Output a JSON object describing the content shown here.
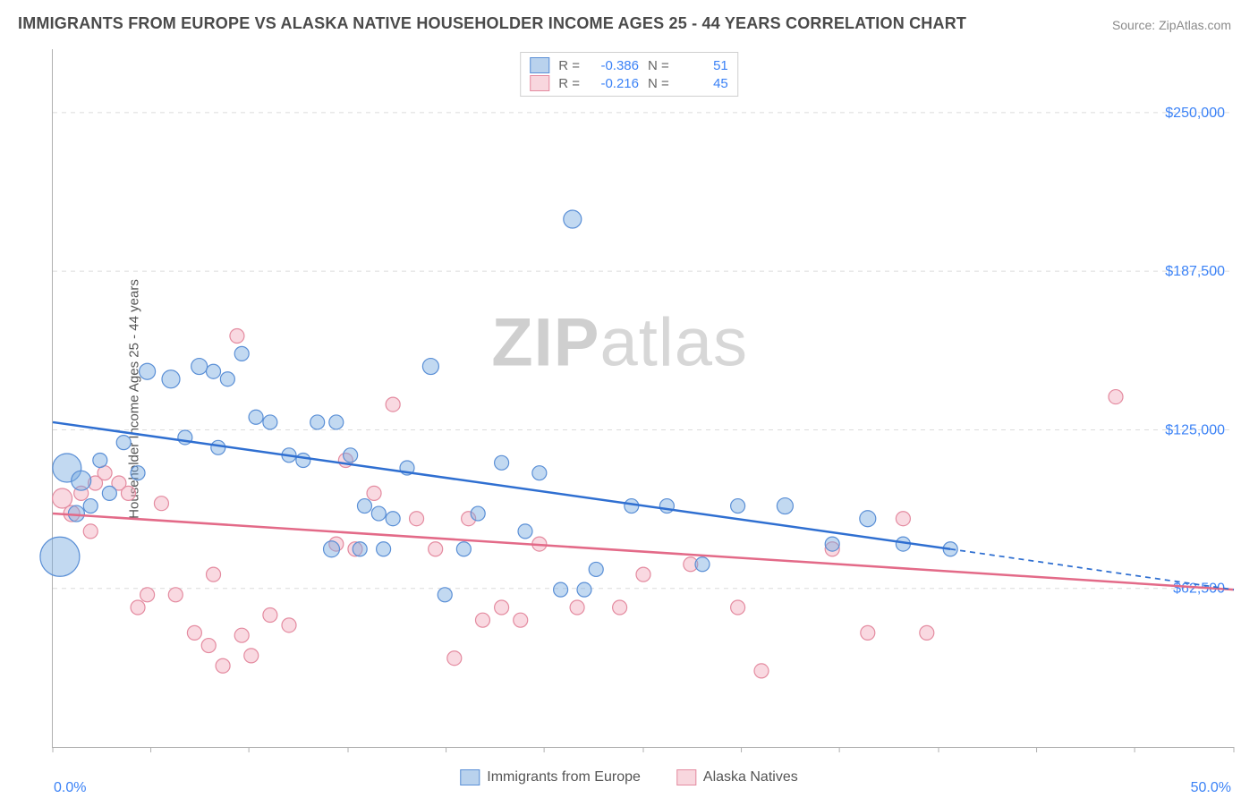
{
  "title": "IMMIGRANTS FROM EUROPE VS ALASKA NATIVE HOUSEHOLDER INCOME AGES 25 - 44 YEARS CORRELATION CHART",
  "source": "Source: ZipAtlas.com",
  "y_axis_label": "Householder Income Ages 25 - 44 years",
  "watermark": {
    "part1": "ZIP",
    "part2": "atlas"
  },
  "chart": {
    "type": "scatter",
    "xlim": [
      0,
      50
    ],
    "ylim": [
      0,
      275000
    ],
    "x_tick_positions_pct": [
      0,
      8.3,
      16.6,
      25,
      33.3,
      41.6,
      50,
      58.3,
      66.6,
      75,
      83.3,
      91.6,
      100
    ],
    "x_tick_labels": {
      "min": "0.0%",
      "max": "50.0%"
    },
    "y_gridlines": [
      62500,
      125000,
      187500,
      250000
    ],
    "y_tick_labels": [
      "$62,500",
      "$125,000",
      "$187,500",
      "$250,000"
    ],
    "grid_color": "#dcdcdc",
    "axis_color": "#b0b0b0",
    "background_color": "#ffffff",
    "label_fontsize": 15,
    "tick_fontsize": 16,
    "tick_label_color": "#3b82f6",
    "title_fontsize": 18,
    "series": {
      "blue": {
        "label": "Immigrants from Europe",
        "fill": "rgba(120,170,225,0.45)",
        "stroke": "#5a8fd6",
        "correlation": {
          "R": "-0.386",
          "N": "51"
        },
        "trend": {
          "x1": 0,
          "y1": 128000,
          "x2": 38,
          "y2": 78000,
          "x2_dash": 50,
          "y2_dash": 62000,
          "color": "#2f6fd1",
          "width": 2.5
        },
        "points": [
          {
            "x": 0.3,
            "y": 75000,
            "r": 22
          },
          {
            "x": 0.6,
            "y": 110000,
            "r": 16
          },
          {
            "x": 1.2,
            "y": 105000,
            "r": 11
          },
          {
            "x": 1.0,
            "y": 92000,
            "r": 9
          },
          {
            "x": 1.6,
            "y": 95000,
            "r": 8
          },
          {
            "x": 2.0,
            "y": 113000,
            "r": 8
          },
          {
            "x": 2.4,
            "y": 100000,
            "r": 8
          },
          {
            "x": 3.0,
            "y": 120000,
            "r": 8
          },
          {
            "x": 3.6,
            "y": 108000,
            "r": 8
          },
          {
            "x": 4.0,
            "y": 148000,
            "r": 9
          },
          {
            "x": 5.0,
            "y": 145000,
            "r": 10
          },
          {
            "x": 5.6,
            "y": 122000,
            "r": 8
          },
          {
            "x": 6.2,
            "y": 150000,
            "r": 9
          },
          {
            "x": 6.8,
            "y": 148000,
            "r": 8
          },
          {
            "x": 7.4,
            "y": 145000,
            "r": 8
          },
          {
            "x": 7.0,
            "y": 118000,
            "r": 8
          },
          {
            "x": 8.0,
            "y": 155000,
            "r": 8
          },
          {
            "x": 8.6,
            "y": 130000,
            "r": 8
          },
          {
            "x": 9.2,
            "y": 128000,
            "r": 8
          },
          {
            "x": 10.0,
            "y": 115000,
            "r": 8
          },
          {
            "x": 10.6,
            "y": 113000,
            "r": 8
          },
          {
            "x": 11.2,
            "y": 128000,
            "r": 8
          },
          {
            "x": 12.0,
            "y": 128000,
            "r": 8
          },
          {
            "x": 12.6,
            "y": 115000,
            "r": 8
          },
          {
            "x": 11.8,
            "y": 78000,
            "r": 9
          },
          {
            "x": 13.2,
            "y": 95000,
            "r": 8
          },
          {
            "x": 13.8,
            "y": 92000,
            "r": 8
          },
          {
            "x": 14.4,
            "y": 90000,
            "r": 8
          },
          {
            "x": 15.0,
            "y": 110000,
            "r": 8
          },
          {
            "x": 14.0,
            "y": 78000,
            "r": 8
          },
          {
            "x": 13.0,
            "y": 78000,
            "r": 8
          },
          {
            "x": 16.0,
            "y": 150000,
            "r": 9
          },
          {
            "x": 16.6,
            "y": 60000,
            "r": 8
          },
          {
            "x": 17.4,
            "y": 78000,
            "r": 8
          },
          {
            "x": 18.0,
            "y": 92000,
            "r": 8
          },
          {
            "x": 19.0,
            "y": 112000,
            "r": 8
          },
          {
            "x": 20.0,
            "y": 85000,
            "r": 8
          },
          {
            "x": 20.6,
            "y": 108000,
            "r": 8
          },
          {
            "x": 21.5,
            "y": 62000,
            "r": 8
          },
          {
            "x": 22.0,
            "y": 208000,
            "r": 10
          },
          {
            "x": 22.5,
            "y": 62000,
            "r": 8
          },
          {
            "x": 23.0,
            "y": 70000,
            "r": 8
          },
          {
            "x": 24.5,
            "y": 95000,
            "r": 8
          },
          {
            "x": 26.0,
            "y": 95000,
            "r": 8
          },
          {
            "x": 27.5,
            "y": 72000,
            "r": 8
          },
          {
            "x": 29.0,
            "y": 95000,
            "r": 8
          },
          {
            "x": 31.0,
            "y": 95000,
            "r": 9
          },
          {
            "x": 33.0,
            "y": 80000,
            "r": 8
          },
          {
            "x": 34.5,
            "y": 90000,
            "r": 9
          },
          {
            "x": 36.0,
            "y": 80000,
            "r": 8
          },
          {
            "x": 38.0,
            "y": 78000,
            "r": 8
          }
        ]
      },
      "pink": {
        "label": "Alaska Natives",
        "fill": "rgba(240,160,180,0.40)",
        "stroke": "#e48ba0",
        "correlation": {
          "R": "-0.216",
          "N": "45"
        },
        "trend": {
          "x1": 0,
          "y1": 92000,
          "x2": 50,
          "y2": 62000,
          "x2_dash": 50,
          "y2_dash": 62000,
          "color": "#e36a88",
          "width": 2.5
        },
        "points": [
          {
            "x": 0.4,
            "y": 98000,
            "r": 11
          },
          {
            "x": 0.8,
            "y": 92000,
            "r": 9
          },
          {
            "x": 1.2,
            "y": 100000,
            "r": 8
          },
          {
            "x": 1.8,
            "y": 104000,
            "r": 8
          },
          {
            "x": 2.2,
            "y": 108000,
            "r": 8
          },
          {
            "x": 2.8,
            "y": 104000,
            "r": 8
          },
          {
            "x": 1.6,
            "y": 85000,
            "r": 8
          },
          {
            "x": 3.2,
            "y": 100000,
            "r": 8
          },
          {
            "x": 3.6,
            "y": 55000,
            "r": 8
          },
          {
            "x": 4.0,
            "y": 60000,
            "r": 8
          },
          {
            "x": 4.6,
            "y": 96000,
            "r": 8
          },
          {
            "x": 5.2,
            "y": 60000,
            "r": 8
          },
          {
            "x": 6.0,
            "y": 45000,
            "r": 8
          },
          {
            "x": 6.6,
            "y": 40000,
            "r": 8
          },
          {
            "x": 7.2,
            "y": 32000,
            "r": 8
          },
          {
            "x": 7.8,
            "y": 162000,
            "r": 8
          },
          {
            "x": 8.0,
            "y": 44000,
            "r": 8
          },
          {
            "x": 8.4,
            "y": 36000,
            "r": 8
          },
          {
            "x": 9.2,
            "y": 52000,
            "r": 8
          },
          {
            "x": 10.0,
            "y": 48000,
            "r": 8
          },
          {
            "x": 12.0,
            "y": 80000,
            "r": 8
          },
          {
            "x": 12.4,
            "y": 113000,
            "r": 8
          },
          {
            "x": 12.8,
            "y": 78000,
            "r": 8
          },
          {
            "x": 13.6,
            "y": 100000,
            "r": 8
          },
          {
            "x": 14.4,
            "y": 135000,
            "r": 8
          },
          {
            "x": 15.4,
            "y": 90000,
            "r": 8
          },
          {
            "x": 16.2,
            "y": 78000,
            "r": 8
          },
          {
            "x": 17.0,
            "y": 35000,
            "r": 8
          },
          {
            "x": 17.6,
            "y": 90000,
            "r": 8
          },
          {
            "x": 18.2,
            "y": 50000,
            "r": 8
          },
          {
            "x": 19.0,
            "y": 55000,
            "r": 8
          },
          {
            "x": 19.8,
            "y": 50000,
            "r": 8
          },
          {
            "x": 20.6,
            "y": 80000,
            "r": 8
          },
          {
            "x": 22.2,
            "y": 55000,
            "r": 8
          },
          {
            "x": 24.0,
            "y": 55000,
            "r": 8
          },
          {
            "x": 25.0,
            "y": 68000,
            "r": 8
          },
          {
            "x": 27.0,
            "y": 72000,
            "r": 8
          },
          {
            "x": 29.0,
            "y": 55000,
            "r": 8
          },
          {
            "x": 30.0,
            "y": 30000,
            "r": 8
          },
          {
            "x": 33.0,
            "y": 78000,
            "r": 8
          },
          {
            "x": 34.5,
            "y": 45000,
            "r": 8
          },
          {
            "x": 36.0,
            "y": 90000,
            "r": 8
          },
          {
            "x": 37.0,
            "y": 45000,
            "r": 8
          },
          {
            "x": 45.0,
            "y": 138000,
            "r": 8
          },
          {
            "x": 6.8,
            "y": 68000,
            "r": 8
          }
        ]
      }
    },
    "corr_labels": {
      "r_prefix": "R =",
      "n_prefix": "N ="
    }
  }
}
